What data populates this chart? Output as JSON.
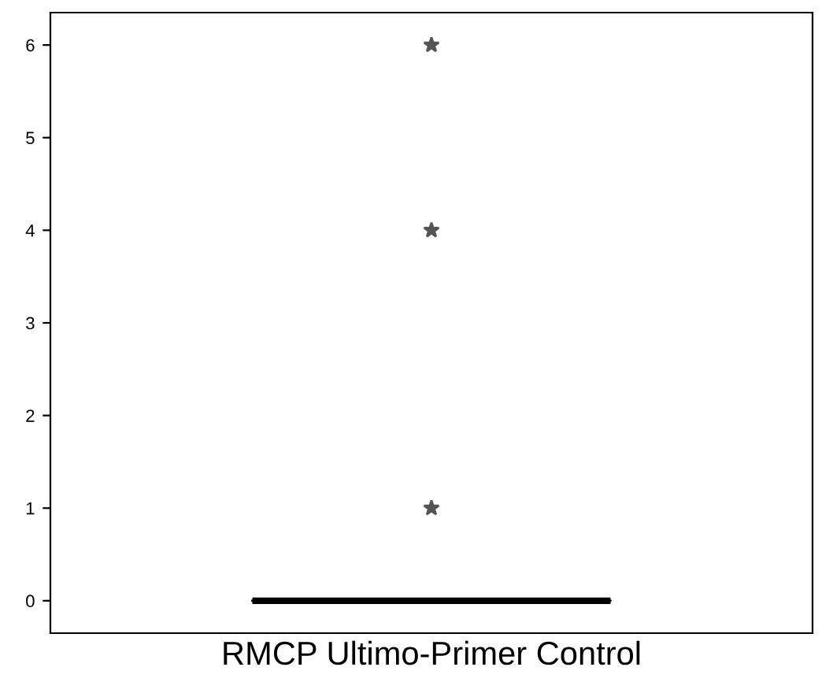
{
  "chart_data": {
    "type": "box",
    "categories": [
      "RMCP Ultimo-Primer Control"
    ],
    "boxes": [
      {
        "low": 0,
        "q1": 0,
        "median": 0,
        "q3": 0,
        "high": 0,
        "outliers": [
          1,
          4,
          6
        ]
      }
    ],
    "ylim": [
      -0.35,
      6.35
    ],
    "yticks": [
      0,
      1,
      2,
      3,
      4,
      5,
      6
    ],
    "legend": false,
    "marker": "star"
  }
}
